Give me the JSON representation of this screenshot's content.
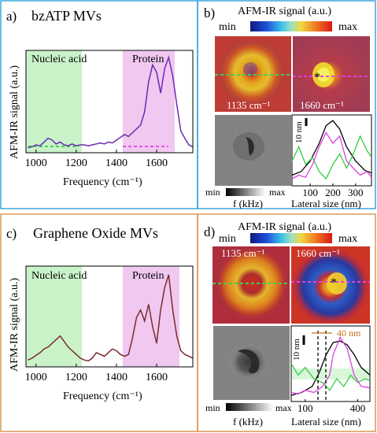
{
  "colors": {
    "blue_frame": "#3aa8dc",
    "orange_frame": "#d99a55",
    "nucleic_fill": "#c9f2c9",
    "protein_fill": "#f0c8f0",
    "spectrum_a": "#6a2bb5",
    "spectrum_c": "#7a2b2b",
    "green_line": "#33cc44",
    "magenta_line": "#e040e0"
  },
  "panels": {
    "a": {
      "letter": "a)",
      "title": "bzATP MVs",
      "nucleic": "Nucleic acid",
      "protein": "Protein",
      "ylabel": "AFM-IR signal (a.u.)",
      "xlabel": "Frequency (cm⁻¹)"
    },
    "b": {
      "letter": "b)",
      "title": "AFM-IR signal (a.u.)",
      "min": "min",
      "max": "max",
      "map1": "1135 cm⁻¹",
      "map2": "1660 cm⁻¹",
      "star": "*",
      "gray_min": "min",
      "gray_max": "max",
      "gray_label": "f (kHz)",
      "scale": "10 nm",
      "xlabel": "Lateral size (nm)"
    },
    "c": {
      "letter": "c)",
      "title": "Graphene Oxide MVs",
      "nucleic": "Nucleic acid",
      "protein": "Protein",
      "ylabel": "AFM-IR signal (a.u.)",
      "xlabel": "Frequency (cm⁻¹)"
    },
    "d": {
      "letter": "d)",
      "title": "AFM-IR signal (a.u.)",
      "min": "min",
      "max": "max",
      "map1": "1135 cm⁻¹",
      "map2": "1660 cm⁻¹",
      "star": "*",
      "gray_min": "min",
      "gray_max": "max",
      "gray_label": "f (kHz)",
      "scale": "10 nm",
      "annotation": "40 nm",
      "xlabel": "Lateral size (nm)"
    }
  },
  "chart_data": [
    {
      "type": "line",
      "panel": "a",
      "xlim": [
        950,
        1780
      ],
      "xticks": [
        1000,
        1200,
        1400,
        1600
      ],
      "bands": [
        {
          "name": "Nucleic acid",
          "range": [
            960,
            1250
          ]
        },
        {
          "name": "Protein",
          "range": [
            1460,
            1725
          ]
        }
      ],
      "x": [
        960,
        980,
        1000,
        1020,
        1040,
        1060,
        1080,
        1100,
        1120,
        1140,
        1160,
        1180,
        1200,
        1220,
        1240,
        1260,
        1280,
        1300,
        1320,
        1340,
        1360,
        1380,
        1400,
        1420,
        1440,
        1460,
        1480,
        1500,
        1520,
        1540,
        1560,
        1580,
        1600,
        1620,
        1640,
        1660,
        1680,
        1700,
        1720,
        1740,
        1760,
        1780
      ],
      "y": [
        0.02,
        0.03,
        0.05,
        0.04,
        0.08,
        0.12,
        0.1,
        0.06,
        0.08,
        0.05,
        0.04,
        0.06,
        0.04,
        0.05,
        0.05,
        0.04,
        0.05,
        0.06,
        0.07,
        0.06,
        0.08,
        0.07,
        0.1,
        0.13,
        0.16,
        0.14,
        0.18,
        0.22,
        0.26,
        0.4,
        0.72,
        0.9,
        0.82,
        0.6,
        0.86,
        0.98,
        0.78,
        0.48,
        0.2,
        0.12,
        0.05,
        0.03
      ]
    },
    {
      "type": "line",
      "panel": "c",
      "xlim": [
        950,
        1780
      ],
      "xticks": [
        1000,
        1200,
        1400,
        1600
      ],
      "bands": [
        {
          "name": "Nucleic acid",
          "range": [
            960,
            1250
          ]
        },
        {
          "name": "Protein",
          "range": [
            1460,
            1725
          ]
        }
      ],
      "x": [
        960,
        980,
        1000,
        1020,
        1040,
        1060,
        1080,
        1100,
        1120,
        1140,
        1160,
        1180,
        1200,
        1220,
        1240,
        1260,
        1280,
        1300,
        1320,
        1340,
        1360,
        1380,
        1400,
        1420,
        1440,
        1460,
        1480,
        1500,
        1520,
        1540,
        1560,
        1580,
        1600,
        1620,
        1640,
        1660,
        1680,
        1700,
        1720,
        1740,
        1760,
        1780
      ],
      "y": [
        0.04,
        0.06,
        0.09,
        0.12,
        0.16,
        0.18,
        0.22,
        0.26,
        0.3,
        0.24,
        0.18,
        0.14,
        0.1,
        0.06,
        0.04,
        0.03,
        0.06,
        0.12,
        0.1,
        0.08,
        0.12,
        0.16,
        0.14,
        0.1,
        0.08,
        0.1,
        0.28,
        0.5,
        0.58,
        0.46,
        0.64,
        0.4,
        0.22,
        0.58,
        0.82,
        0.96,
        0.58,
        0.3,
        0.14,
        0.1,
        0.08,
        0.06
      ]
    },
    {
      "type": "line",
      "panel": "b",
      "xlabel": "Lateral size (nm)",
      "xticks": [
        100,
        200,
        300
      ],
      "xlim": [
        20,
        370
      ],
      "series": [
        {
          "color": "black",
          "x": [
            20,
            60,
            100,
            140,
            170,
            200,
            230,
            260,
            300,
            340,
            370
          ],
          "y": [
            0.15,
            0.2,
            0.35,
            0.6,
            0.85,
            0.92,
            0.8,
            0.55,
            0.35,
            0.22,
            0.18
          ]
        },
        {
          "color": "green",
          "x": [
            20,
            50,
            80,
            110,
            140,
            170,
            200,
            230,
            260,
            290,
            320,
            350,
            370
          ],
          "y": [
            0.35,
            0.55,
            0.3,
            0.4,
            0.2,
            0.1,
            0.3,
            0.45,
            0.25,
            0.45,
            0.7,
            0.5,
            0.4
          ]
        },
        {
          "color": "magenta",
          "x": [
            20,
            50,
            80,
            110,
            140,
            170,
            200,
            230,
            260,
            290,
            320,
            350,
            370
          ],
          "y": [
            0.1,
            0.15,
            0.12,
            0.3,
            0.55,
            0.75,
            0.6,
            0.7,
            0.35,
            0.25,
            0.15,
            0.2,
            0.12
          ]
        }
      ]
    },
    {
      "type": "line",
      "panel": "d",
      "xlabel": "Lateral size (nm)",
      "xticks": [
        100,
        400
      ],
      "xlim": [
        20,
        470
      ],
      "series": [
        {
          "color": "black",
          "x": [
            20,
            80,
            140,
            180,
            220,
            260,
            300,
            340,
            380,
            420,
            470
          ],
          "y": [
            0.08,
            0.12,
            0.2,
            0.38,
            0.62,
            0.78,
            0.8,
            0.75,
            0.62,
            0.45,
            0.35
          ]
        },
        {
          "color": "green",
          "x": [
            20,
            60,
            100,
            150,
            200,
            240,
            280,
            320,
            360,
            400,
            440,
            470
          ],
          "y": [
            0.5,
            0.35,
            0.45,
            0.3,
            0.25,
            0.15,
            0.3,
            0.2,
            0.35,
            0.25,
            0.3,
            0.28
          ]
        },
        {
          "color": "magenta",
          "x": [
            20,
            60,
            100,
            150,
            200,
            240,
            260,
            300,
            340,
            380,
            420,
            470
          ],
          "y": [
            0.12,
            0.1,
            0.15,
            0.12,
            0.2,
            0.35,
            0.62,
            0.85,
            0.7,
            0.35,
            0.2,
            0.18
          ]
        }
      ]
    }
  ]
}
